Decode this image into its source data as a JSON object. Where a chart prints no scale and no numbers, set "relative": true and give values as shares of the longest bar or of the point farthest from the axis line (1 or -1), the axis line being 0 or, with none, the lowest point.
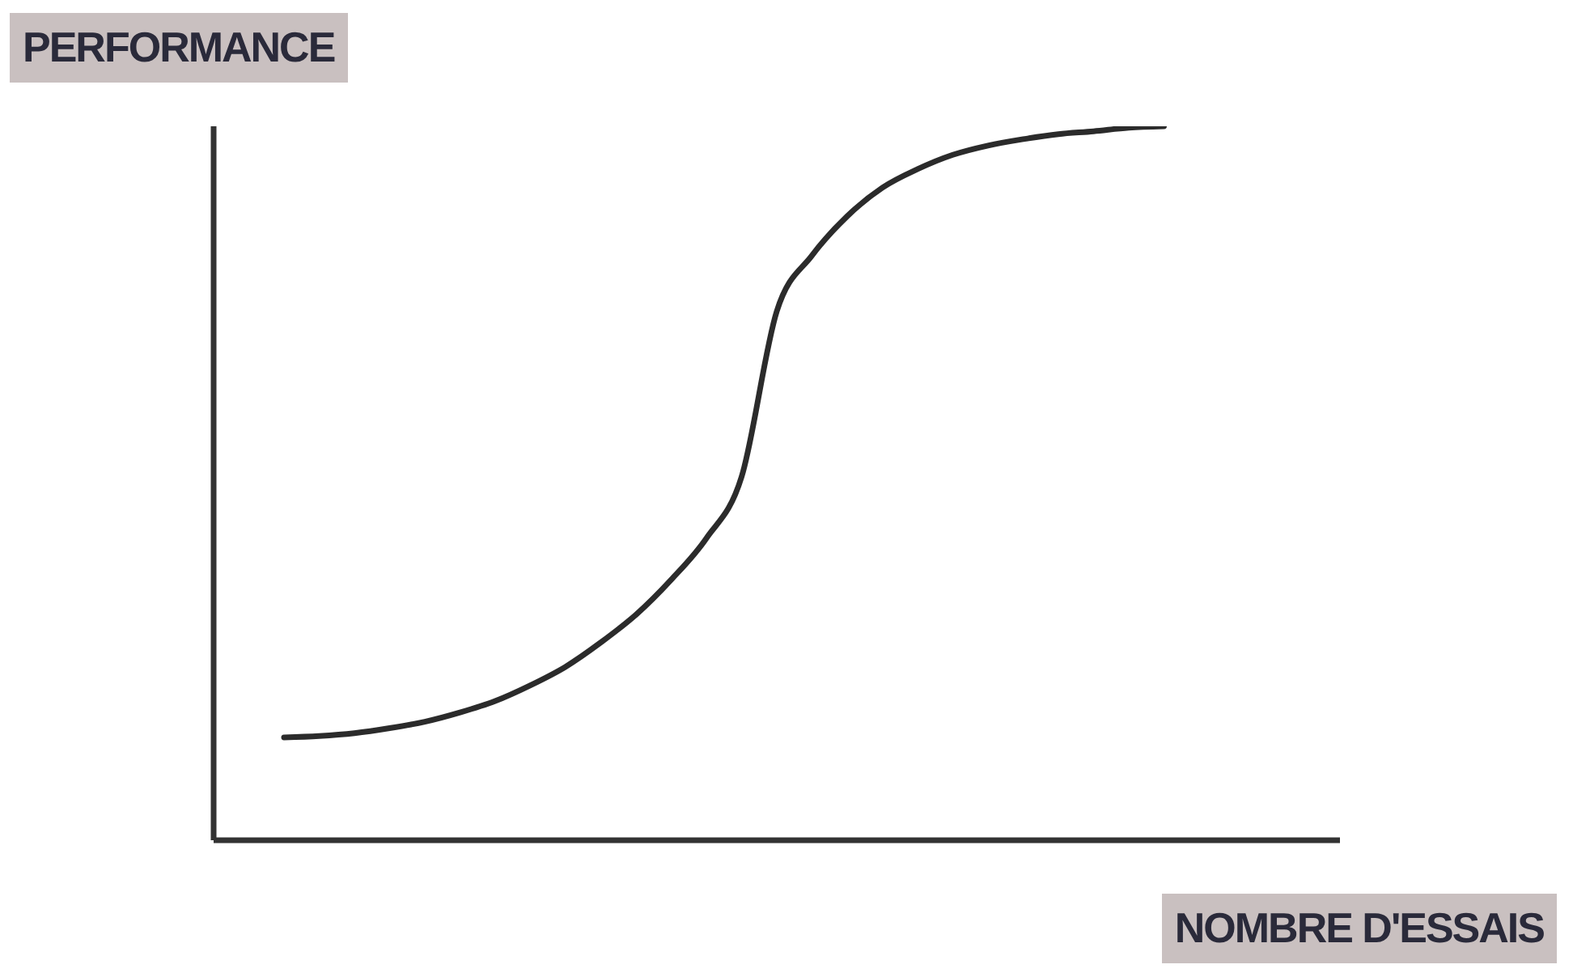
{
  "chart_data": {
    "type": "line",
    "relative": true,
    "xlabel": "NOMBRE D'ESSAIS",
    "ylabel": "PERFORMANCE",
    "marker": "none",
    "line_style": "solid",
    "categories": [
      null,
      null,
      null,
      null,
      null,
      null,
      null,
      null,
      null,
      null,
      null,
      null,
      null,
      null,
      null,
      null,
      null,
      null,
      null,
      null,
      null,
      null,
      null,
      null,
      null,
      null,
      null,
      null,
      null,
      null,
      null,
      null,
      null
    ],
    "series": [
      {
        "color": "#2b2b2b",
        "values": [
          null,
          null,
          0.144,
          0.146,
          0.15,
          0.157,
          0.166,
          0.179,
          0.195,
          0.217,
          0.243,
          0.277,
          0.316,
          0.365,
          0.423,
          0.509,
          0.741,
          0.819,
          0.874,
          0.914,
          0.94,
          0.96,
          0.973,
          0.982,
          0.989,
          0.993,
          0.998,
          1,
          null,
          null,
          null,
          null,
          null
        ]
      }
    ]
  }
}
